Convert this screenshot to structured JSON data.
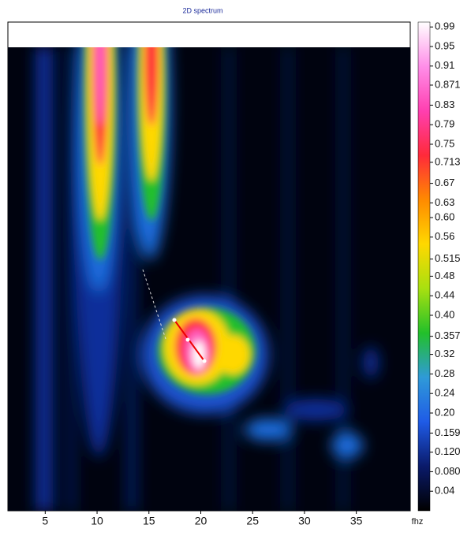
{
  "chart_data": {
    "type": "heatmap",
    "title": "2D spectrum",
    "x_label": "fhz",
    "xlim": [
      1.4,
      40.2
    ],
    "xticks": [
      5,
      10,
      15,
      20,
      25,
      30,
      35
    ],
    "clim": [
      0,
      1
    ],
    "cticks": [
      0.99,
      0.95,
      0.91,
      0.871,
      0.83,
      0.79,
      0.75,
      0.713,
      0.67,
      0.63,
      {
        "value": 0.6,
        "label": "0.60"
      },
      0.56,
      0.515,
      0.48,
      0.44,
      {
        "value": 0.4,
        "label": "0.40"
      },
      0.357,
      0.32,
      0.28,
      0.24,
      {
        "value": 0.2,
        "label": "0.20"
      },
      0.159,
      {
        "value": 0.12,
        "label": "0.120"
      },
      {
        "value": 0.08,
        "label": "0.080"
      },
      0.04
    ],
    "colorscale": [
      "#000000",
      "#0a1a6a",
      "#1f5be6",
      "#2f9ad8",
      "#22c02a",
      "#a8e010",
      "#ffd800",
      "#ff8a00",
      "#ff2a3a",
      "#ff3fb0",
      "#ff8ee8",
      "#ffffff"
    ]
  }
}
